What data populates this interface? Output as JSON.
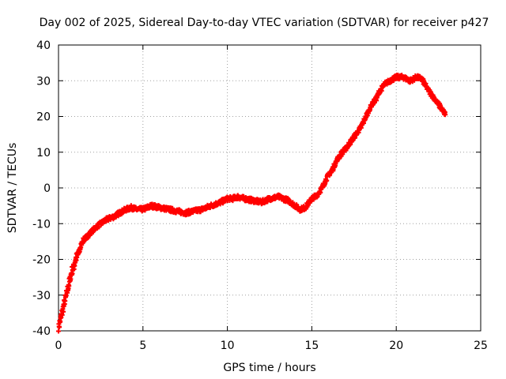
{
  "chart_data": {
    "type": "scatter",
    "title": "Day 002 of 2025, Sidereal Day-to-day VTEC variation (SDTVAR) for receiver p427",
    "xlabel": "GPS time / hours",
    "ylabel": "SDTVAR / TECUs",
    "xlim": [
      0,
      25
    ],
    "ylim": [
      -40,
      40
    ],
    "grid": true,
    "marker": "+",
    "series_color": "#ff0000",
    "x_ticks": [
      0,
      5,
      10,
      15,
      20,
      25
    ],
    "y_ticks": [
      -40,
      -30,
      -20,
      -10,
      0,
      10,
      20,
      30,
      40
    ],
    "x_tick_labels": [
      "0",
      "5",
      "10",
      "15",
      "20",
      "25"
    ],
    "y_tick_labels": [
      "-40",
      "-30",
      "-20",
      "-10",
      "0",
      "10",
      "20",
      "30",
      "40"
    ],
    "series": [
      {
        "name": "SDTVAR",
        "x": [
          0.0,
          0.1,
          0.2,
          0.3,
          0.4,
          0.5,
          0.6,
          0.7,
          0.8,
          0.9,
          1.0,
          1.2,
          1.4,
          1.6,
          1.8,
          2.0,
          2.2,
          2.5,
          2.8,
          3.0,
          3.3,
          3.6,
          4.0,
          4.3,
          4.6,
          5.0,
          5.5,
          6.0,
          6.5,
          7.0,
          7.5,
          8.0,
          8.5,
          9.0,
          9.3,
          9.6,
          10.0,
          10.3,
          10.6,
          11.0,
          11.5,
          12.0,
          12.5,
          13.0,
          13.3,
          13.6,
          14.0,
          14.3,
          14.6,
          15.0,
          15.3,
          15.6,
          15.9,
          16.2,
          16.5,
          16.8,
          17.0,
          17.3,
          17.6,
          17.9,
          18.2,
          18.5,
          18.8,
          19.0,
          19.3,
          19.6,
          20.0,
          20.4,
          20.8,
          21.2,
          21.5,
          21.8,
          22.1,
          22.4,
          22.7,
          22.9
        ],
        "values": [
          -39,
          -37,
          -35,
          -33,
          -31,
          -29,
          -27,
          -25,
          -23,
          -22,
          -20,
          -18,
          -15,
          -14,
          -13,
          -12,
          -11,
          -10,
          -9,
          -8.5,
          -8,
          -7,
          -6,
          -5.5,
          -6,
          -6,
          -5,
          -5.5,
          -6,
          -6.5,
          -7,
          -6.5,
          -6,
          -5,
          -4.5,
          -4,
          -3,
          -3,
          -2.5,
          -3,
          -3.5,
          -4,
          -3,
          -2.5,
          -3,
          -3.5,
          -5,
          -6,
          -5.5,
          -3,
          -2,
          0,
          3,
          5,
          8,
          10,
          11,
          13,
          15,
          17,
          20,
          23,
          25,
          27,
          29,
          30,
          31,
          31,
          30,
          31,
          30.5,
          28,
          26,
          24,
          22,
          20.5
        ]
      }
    ]
  }
}
